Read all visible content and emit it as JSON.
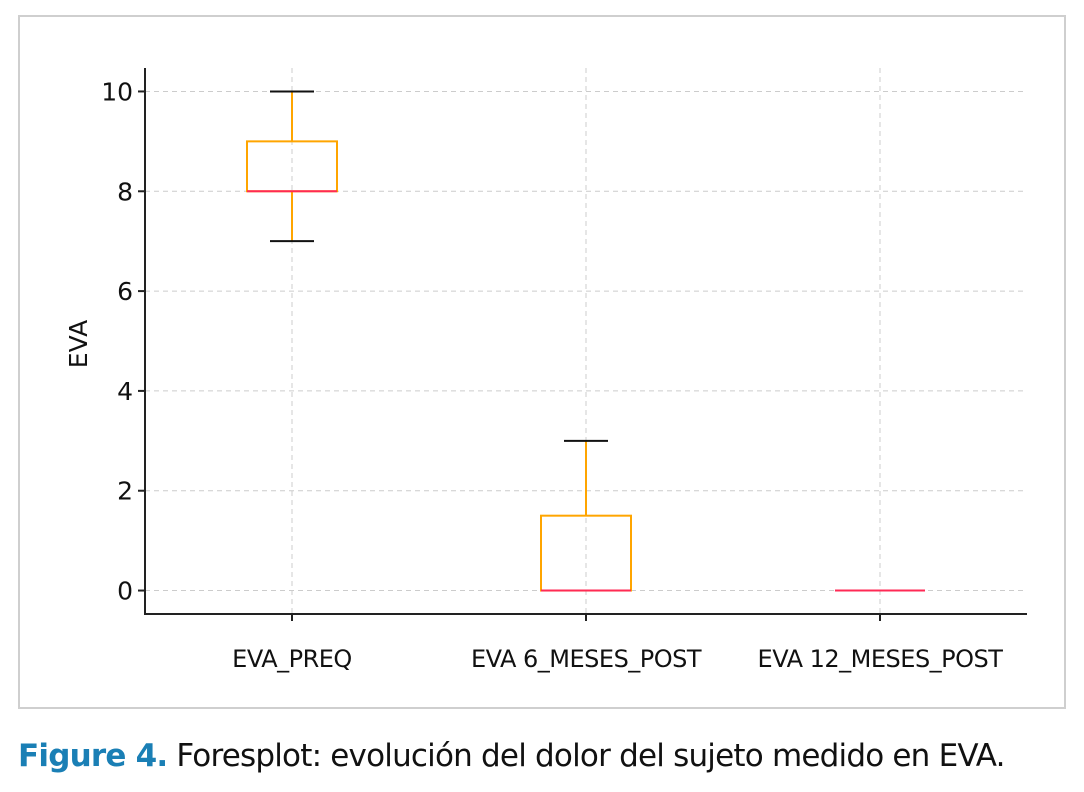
{
  "chart_data": {
    "type": "box",
    "title": "",
    "xlabel": "",
    "ylabel": "EVA",
    "ylim": [
      -0.47,
      10.47
    ],
    "yticks": [
      0,
      2,
      4,
      6,
      8,
      10
    ],
    "grid": true,
    "categories": [
      "EVA_PREQ",
      "EVA 6_MESES_POST",
      "EVA 12_MESES_POST"
    ],
    "boxes": [
      {
        "whisker_low": 7,
        "q1": 8,
        "median": 8,
        "q3": 9,
        "whisker_high": 10
      },
      {
        "whisker_low": 0,
        "q1": 0,
        "median": 0,
        "q3": 1.5,
        "whisker_high": 3
      },
      {
        "whisker_low": 0,
        "q1": 0,
        "median": 0,
        "q3": 0,
        "whisker_high": 0
      }
    ],
    "colors": {
      "box": "#ffa500",
      "median": "#ff2a55",
      "caps": "#111111",
      "grid": "#cccccc"
    }
  },
  "caption": {
    "label": "Figure 4.",
    "text": " Foresplot: evolución del dolor del sujeto medido en EVA."
  }
}
